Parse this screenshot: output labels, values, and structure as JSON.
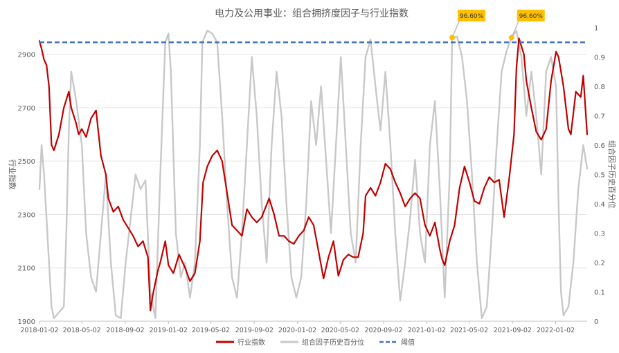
{
  "chart_data": {
    "type": "line",
    "title": "电力及公用事业：组合拥挤度因子与行业指数",
    "xlabel": "",
    "ylabel_left": "行业指数",
    "ylabel_right": "组合因子历史百分位",
    "x_tick_labels": [
      "2018-01-02",
      "2018-05-02",
      "2018-09-02",
      "2019-01-02",
      "2019-05-02",
      "2019-09-02",
      "2020-01-02",
      "2020-05-02",
      "2020-09-02",
      "2021-01-02",
      "2021-05-02",
      "2021-09-02",
      "2022-01-02"
    ],
    "x_range": [
      "2018-01-02",
      "2022-04-01"
    ],
    "y_left": {
      "min": 1900,
      "max": 3000,
      "ticks": [
        1900,
        2100,
        2300,
        2500,
        2700,
        2900
      ]
    },
    "y_right": {
      "min": 0,
      "max": 1,
      "ticks": [
        0,
        0.1,
        0.2,
        0.3,
        0.4,
        0.5,
        0.6,
        0.7,
        0.8,
        0.9,
        1
      ]
    },
    "legend_position": "bottom-center",
    "grid": "horizontal",
    "series": [
      {
        "name": "行业指数",
        "axis": "left",
        "color": "#c00000",
        "points": [
          [
            "2018-01-02",
            2950
          ],
          [
            "2018-01-08",
            2920
          ],
          [
            "2018-01-15",
            2880
          ],
          [
            "2018-01-22",
            2860
          ],
          [
            "2018-01-29",
            2780
          ],
          [
            "2018-02-05",
            2560
          ],
          [
            "2018-02-12",
            2540
          ],
          [
            "2018-02-26",
            2600
          ],
          [
            "2018-03-12",
            2700
          ],
          [
            "2018-03-26",
            2760
          ],
          [
            "2018-04-02",
            2700
          ],
          [
            "2018-04-16",
            2640
          ],
          [
            "2018-04-23",
            2600
          ],
          [
            "2018-05-02",
            2620
          ],
          [
            "2018-05-14",
            2590
          ],
          [
            "2018-05-28",
            2660
          ],
          [
            "2018-06-11",
            2690
          ],
          [
            "2018-06-25",
            2520
          ],
          [
            "2018-07-09",
            2450
          ],
          [
            "2018-07-16",
            2360
          ],
          [
            "2018-07-30",
            2310
          ],
          [
            "2018-08-13",
            2330
          ],
          [
            "2018-08-27",
            2280
          ],
          [
            "2018-09-10",
            2250
          ],
          [
            "2018-09-24",
            2220
          ],
          [
            "2018-10-08",
            2180
          ],
          [
            "2018-10-22",
            2200
          ],
          [
            "2018-11-05",
            2140
          ],
          [
            "2018-11-12",
            1940
          ],
          [
            "2018-11-19",
            2000
          ],
          [
            "2018-12-03",
            2090
          ],
          [
            "2018-12-10",
            2120
          ],
          [
            "2018-12-24",
            2200
          ],
          [
            "2019-01-02",
            2110
          ],
          [
            "2019-01-16",
            2080
          ],
          [
            "2019-02-01",
            2150
          ],
          [
            "2019-02-18",
            2100
          ],
          [
            "2019-03-04",
            2050
          ],
          [
            "2019-03-18",
            2080
          ],
          [
            "2019-04-01",
            2200
          ],
          [
            "2019-04-10",
            2420
          ],
          [
            "2019-04-22",
            2480
          ],
          [
            "2019-05-06",
            2520
          ],
          [
            "2019-05-20",
            2540
          ],
          [
            "2019-06-03",
            2500
          ],
          [
            "2019-06-17",
            2380
          ],
          [
            "2019-07-01",
            2260
          ],
          [
            "2019-07-15",
            2240
          ],
          [
            "2019-07-29",
            2220
          ],
          [
            "2019-08-12",
            2320
          ],
          [
            "2019-08-26",
            2290
          ],
          [
            "2019-09-09",
            2270
          ],
          [
            "2019-09-23",
            2290
          ],
          [
            "2019-10-14",
            2360
          ],
          [
            "2019-10-28",
            2300
          ],
          [
            "2019-11-11",
            2220
          ],
          [
            "2019-11-25",
            2220
          ],
          [
            "2019-12-09",
            2200
          ],
          [
            "2019-12-23",
            2190
          ],
          [
            "2020-01-06",
            2220
          ],
          [
            "2020-01-20",
            2240
          ],
          [
            "2020-02-03",
            2290
          ],
          [
            "2020-02-17",
            2260
          ],
          [
            "2020-03-02",
            2160
          ],
          [
            "2020-03-16",
            2060
          ],
          [
            "2020-03-30",
            2140
          ],
          [
            "2020-04-13",
            2200
          ],
          [
            "2020-04-27",
            2070
          ],
          [
            "2020-05-11",
            2130
          ],
          [
            "2020-05-25",
            2150
          ],
          [
            "2020-06-08",
            2140
          ],
          [
            "2020-06-22",
            2140
          ],
          [
            "2020-07-06",
            2230
          ],
          [
            "2020-07-13",
            2370
          ],
          [
            "2020-07-27",
            2400
          ],
          [
            "2020-08-10",
            2370
          ],
          [
            "2020-08-24",
            2420
          ],
          [
            "2020-09-07",
            2490
          ],
          [
            "2020-09-21",
            2470
          ],
          [
            "2020-10-05",
            2420
          ],
          [
            "2020-10-19",
            2380
          ],
          [
            "2020-11-02",
            2330
          ],
          [
            "2020-11-16",
            2360
          ],
          [
            "2020-11-30",
            2380
          ],
          [
            "2020-12-14",
            2360
          ],
          [
            "2020-12-28",
            2260
          ],
          [
            "2021-01-11",
            2220
          ],
          [
            "2021-01-25",
            2270
          ],
          [
            "2021-02-08",
            2170
          ],
          [
            "2021-02-15",
            2130
          ],
          [
            "2021-02-22",
            2110
          ],
          [
            "2021-03-08",
            2200
          ],
          [
            "2021-03-22",
            2260
          ],
          [
            "2021-04-05",
            2400
          ],
          [
            "2021-04-19",
            2480
          ],
          [
            "2021-05-03",
            2420
          ],
          [
            "2021-05-17",
            2350
          ],
          [
            "2021-05-31",
            2340
          ],
          [
            "2021-06-14",
            2400
          ],
          [
            "2021-06-28",
            2440
          ],
          [
            "2021-07-12",
            2420
          ],
          [
            "2021-07-26",
            2430
          ],
          [
            "2021-08-02",
            2360
          ],
          [
            "2021-08-09",
            2290
          ],
          [
            "2021-08-16",
            2360
          ],
          [
            "2021-08-23",
            2430
          ],
          [
            "2021-09-06",
            2600
          ],
          [
            "2021-09-13",
            2850
          ],
          [
            "2021-09-20",
            2960
          ],
          [
            "2021-10-04",
            2900
          ],
          [
            "2021-10-11",
            2800
          ],
          [
            "2021-10-25",
            2700
          ],
          [
            "2021-11-08",
            2610
          ],
          [
            "2021-11-22",
            2580
          ],
          [
            "2021-12-06",
            2620
          ],
          [
            "2021-12-20",
            2800
          ],
          [
            "2022-01-03",
            2910
          ],
          [
            "2022-01-10",
            2890
          ],
          [
            "2022-01-24",
            2780
          ],
          [
            "2022-02-07",
            2620
          ],
          [
            "2022-02-14",
            2600
          ],
          [
            "2022-02-28",
            2760
          ],
          [
            "2022-03-14",
            2740
          ],
          [
            "2022-03-21",
            2820
          ],
          [
            "2022-04-01",
            2600
          ]
        ]
      },
      {
        "name": "组合因子历史百分位",
        "axis": "right",
        "color": "#c8c8c8",
        "points": [
          [
            "2018-01-02",
            0.45
          ],
          [
            "2018-01-08",
            0.6
          ],
          [
            "2018-01-15",
            0.5
          ],
          [
            "2018-01-22",
            0.35
          ],
          [
            "2018-01-29",
            0.2
          ],
          [
            "2018-02-05",
            0.05
          ],
          [
            "2018-02-12",
            0.01
          ],
          [
            "2018-02-26",
            0.03
          ],
          [
            "2018-03-12",
            0.05
          ],
          [
            "2018-03-19",
            0.3
          ],
          [
            "2018-03-26",
            0.65
          ],
          [
            "2018-04-02",
            0.85
          ],
          [
            "2018-04-16",
            0.75
          ],
          [
            "2018-05-02",
            0.6
          ],
          [
            "2018-05-14",
            0.3
          ],
          [
            "2018-05-28",
            0.15
          ],
          [
            "2018-06-11",
            0.1
          ],
          [
            "2018-06-25",
            0.3
          ],
          [
            "2018-07-09",
            0.5
          ],
          [
            "2018-07-23",
            0.2
          ],
          [
            "2018-08-06",
            0.02
          ],
          [
            "2018-08-20",
            0.01
          ],
          [
            "2018-09-03",
            0.2
          ],
          [
            "2018-09-17",
            0.35
          ],
          [
            "2018-10-01",
            0.5
          ],
          [
            "2018-10-15",
            0.45
          ],
          [
            "2018-10-29",
            0.48
          ],
          [
            "2018-11-12",
            0.1
          ],
          [
            "2018-11-26",
            0.01
          ],
          [
            "2018-12-10",
            0.5
          ],
          [
            "2018-12-24",
            0.95
          ],
          [
            "2019-01-02",
            0.98
          ],
          [
            "2019-01-09",
            0.85
          ],
          [
            "2019-01-23",
            0.3
          ],
          [
            "2019-02-06",
            0.15
          ],
          [
            "2019-02-18",
            0.2
          ],
          [
            "2019-03-04",
            0.08
          ],
          [
            "2019-03-18",
            0.2
          ],
          [
            "2019-04-01",
            0.6
          ],
          [
            "2019-04-08",
            0.95
          ],
          [
            "2019-04-22",
            0.99
          ],
          [
            "2019-05-06",
            0.98
          ],
          [
            "2019-05-20",
            0.95
          ],
          [
            "2019-06-03",
            0.7
          ],
          [
            "2019-06-17",
            0.4
          ],
          [
            "2019-07-01",
            0.15
          ],
          [
            "2019-07-15",
            0.08
          ],
          [
            "2019-07-29",
            0.3
          ],
          [
            "2019-08-12",
            0.6
          ],
          [
            "2019-08-26",
            0.9
          ],
          [
            "2019-09-09",
            0.7
          ],
          [
            "2019-09-23",
            0.4
          ],
          [
            "2019-10-07",
            0.2
          ],
          [
            "2019-10-21",
            0.6
          ],
          [
            "2019-11-04",
            0.85
          ],
          [
            "2019-11-18",
            0.7
          ],
          [
            "2019-12-02",
            0.4
          ],
          [
            "2019-12-16",
            0.15
          ],
          [
            "2019-12-30",
            0.08
          ],
          [
            "2020-01-13",
            0.15
          ],
          [
            "2020-01-27",
            0.4
          ],
          [
            "2020-02-10",
            0.75
          ],
          [
            "2020-02-24",
            0.6
          ],
          [
            "2020-03-09",
            0.8
          ],
          [
            "2020-03-23",
            0.55
          ],
          [
            "2020-04-06",
            0.3
          ],
          [
            "2020-04-20",
            0.6
          ],
          [
            "2020-05-04",
            0.9
          ],
          [
            "2020-05-18",
            0.6
          ],
          [
            "2020-06-01",
            0.3
          ],
          [
            "2020-06-15",
            0.2
          ],
          [
            "2020-06-29",
            0.6
          ],
          [
            "2020-07-13",
            0.9
          ],
          [
            "2020-07-27",
            0.96
          ],
          [
            "2020-08-10",
            0.8
          ],
          [
            "2020-08-24",
            0.65
          ],
          [
            "2020-09-07",
            0.85
          ],
          [
            "2020-09-21",
            0.6
          ],
          [
            "2020-10-05",
            0.3
          ],
          [
            "2020-10-19",
            0.07
          ],
          [
            "2020-11-02",
            0.2
          ],
          [
            "2020-11-16",
            0.35
          ],
          [
            "2020-11-30",
            0.55
          ],
          [
            "2020-12-14",
            0.3
          ],
          [
            "2020-12-28",
            0.2
          ],
          [
            "2021-01-11",
            0.6
          ],
          [
            "2021-01-25",
            0.75
          ],
          [
            "2021-02-08",
            0.45
          ],
          [
            "2021-02-22",
            0.08
          ],
          [
            "2021-03-08",
            0.5
          ],
          [
            "2021-03-15",
            0.966
          ],
          [
            "2021-03-29",
            0.97
          ],
          [
            "2021-04-12",
            0.9
          ],
          [
            "2021-04-26",
            0.75
          ],
          [
            "2021-05-10",
            0.5
          ],
          [
            "2021-05-24",
            0.2
          ],
          [
            "2021-06-07",
            0.01
          ],
          [
            "2021-06-21",
            0.05
          ],
          [
            "2021-07-05",
            0.3
          ],
          [
            "2021-07-19",
            0.6
          ],
          [
            "2021-08-02",
            0.85
          ],
          [
            "2021-08-16",
            0.92
          ],
          [
            "2021-08-30",
            0.966
          ],
          [
            "2021-09-13",
            0.99
          ],
          [
            "2021-09-27",
            0.9
          ],
          [
            "2021-10-11",
            0.7
          ],
          [
            "2021-10-25",
            0.85
          ],
          [
            "2021-11-08",
            0.7
          ],
          [
            "2021-11-22",
            0.5
          ],
          [
            "2021-12-06",
            0.85
          ],
          [
            "2021-12-20",
            0.9
          ],
          [
            "2022-01-03",
            0.8
          ],
          [
            "2022-01-10",
            0.4
          ],
          [
            "2022-01-17",
            0.1
          ],
          [
            "2022-01-24",
            0.02
          ],
          [
            "2022-02-07",
            0.05
          ],
          [
            "2022-02-21",
            0.2
          ],
          [
            "2022-03-07",
            0.45
          ],
          [
            "2022-03-21",
            0.6
          ],
          [
            "2022-04-01",
            0.52
          ]
        ]
      },
      {
        "name": "阈值",
        "axis": "right",
        "color": "#4472c4",
        "dashed": true,
        "value": 0.95
      }
    ],
    "annotations": [
      {
        "label": "96.60%",
        "x": "2021-03-15",
        "y": 0.966
      },
      {
        "label": "96.60%",
        "x": "2021-08-30",
        "y": 0.966
      }
    ]
  }
}
